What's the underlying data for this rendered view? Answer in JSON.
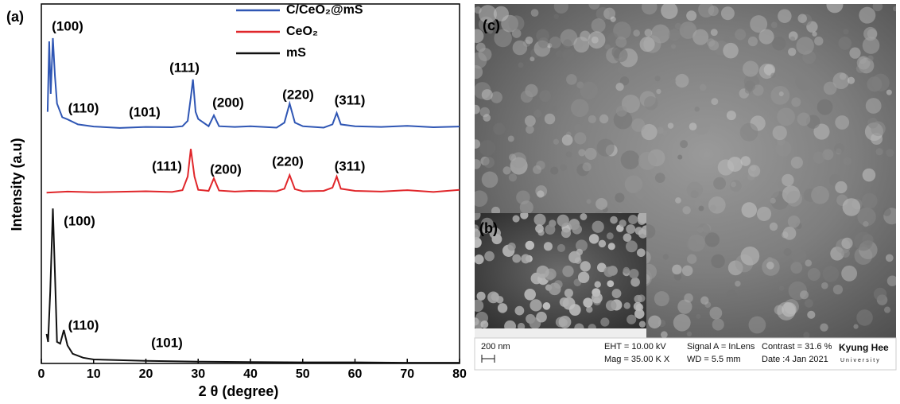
{
  "chart_data": {
    "type": "line",
    "panel_label": "(a)",
    "x_label": "2 θ (degree)",
    "y_label": "Intensity (a.u)",
    "xlim": [
      0,
      80
    ],
    "xticks": [
      0,
      10,
      20,
      30,
      40,
      50,
      60,
      70,
      80
    ],
    "ylim": [
      0,
      100
    ],
    "legend": "top-center",
    "series": [
      {
        "name": "C/CeO₂@mS",
        "color": "#2f56b4",
        "x": [
          1.2,
          1.5,
          1.8,
          2.2,
          2.6,
          3,
          4,
          5,
          7,
          10,
          15,
          20,
          25,
          27,
          28,
          28.6,
          29,
          29.5,
          30,
          32,
          33,
          34,
          37,
          40,
          45,
          46.5,
          47.5,
          48.5,
          50,
          54,
          55.7,
          56.5,
          57.3,
          60,
          65,
          70,
          75,
          80
        ],
        "values": [
          70,
          89.6,
          75,
          90.5,
          80,
          72.3,
          68.5,
          67.9,
          66.5,
          65.9,
          65.5,
          65.8,
          65.7,
          66,
          67.5,
          74,
          79,
          70,
          68,
          66,
          69,
          66,
          65.8,
          66,
          65.6,
          67,
          72.3,
          67,
          66,
          65.6,
          66.5,
          69.7,
          66.5,
          66,
          65.8,
          66.1,
          65.7,
          65.9
        ]
      },
      {
        "name": "CeO₂",
        "color": "#e0262a",
        "x": [
          1,
          5,
          10,
          20,
          25,
          27,
          28,
          28.6,
          29.3,
          30,
          32,
          33,
          34,
          37,
          40,
          45,
          46.5,
          47.5,
          48.5,
          50,
          54,
          55.7,
          56.5,
          57.3,
          60,
          65,
          70,
          75,
          80
        ],
        "values": [
          47.5,
          47.8,
          47.6,
          47.9,
          47.7,
          48.2,
          52,
          59.7,
          52,
          48.3,
          48,
          51.5,
          48.1,
          47.8,
          48,
          47.9,
          48.6,
          52.4,
          48.5,
          47.9,
          48,
          48.9,
          52,
          48.6,
          48,
          47.8,
          48.2,
          47.7,
          48.3
        ]
      },
      {
        "name": "mS",
        "color": "#111111",
        "x": [
          1,
          1.3,
          1.7,
          2.2,
          2.6,
          3,
          3.6,
          4.3,
          5,
          6,
          8,
          10,
          15,
          20,
          30,
          40,
          50,
          60,
          70,
          80
        ],
        "values": [
          8.2,
          6,
          20,
          43.1,
          25,
          6,
          5.5,
          9.3,
          5,
          2.7,
          1.6,
          1.1,
          0.9,
          0.7,
          0.5,
          0.4,
          0.3,
          0.3,
          0.2,
          0.2
        ]
      }
    ],
    "annotations": [
      "(100)",
      "(110)",
      "(101)",
      "(111)",
      "(200)",
      "(220)",
      "(311)",
      "(111)",
      "(200)",
      "(220)",
      "(311)",
      "(100)",
      "(110)",
      "(101)"
    ]
  },
  "sem": {
    "panel_c": "(c)",
    "panel_b": "(b)",
    "scale": "200 nm",
    "eht": "EHT = 10.00 kV",
    "mag": "Mag =  35.00 K X",
    "signal": "Signal A = InLens",
    "wd": "WD =  5.5 mm",
    "contrast": "Contrast = 31.6 %",
    "date": "Date :4 Jan 2021",
    "brand": "Kyung Hee",
    "brand_sub": "University"
  }
}
